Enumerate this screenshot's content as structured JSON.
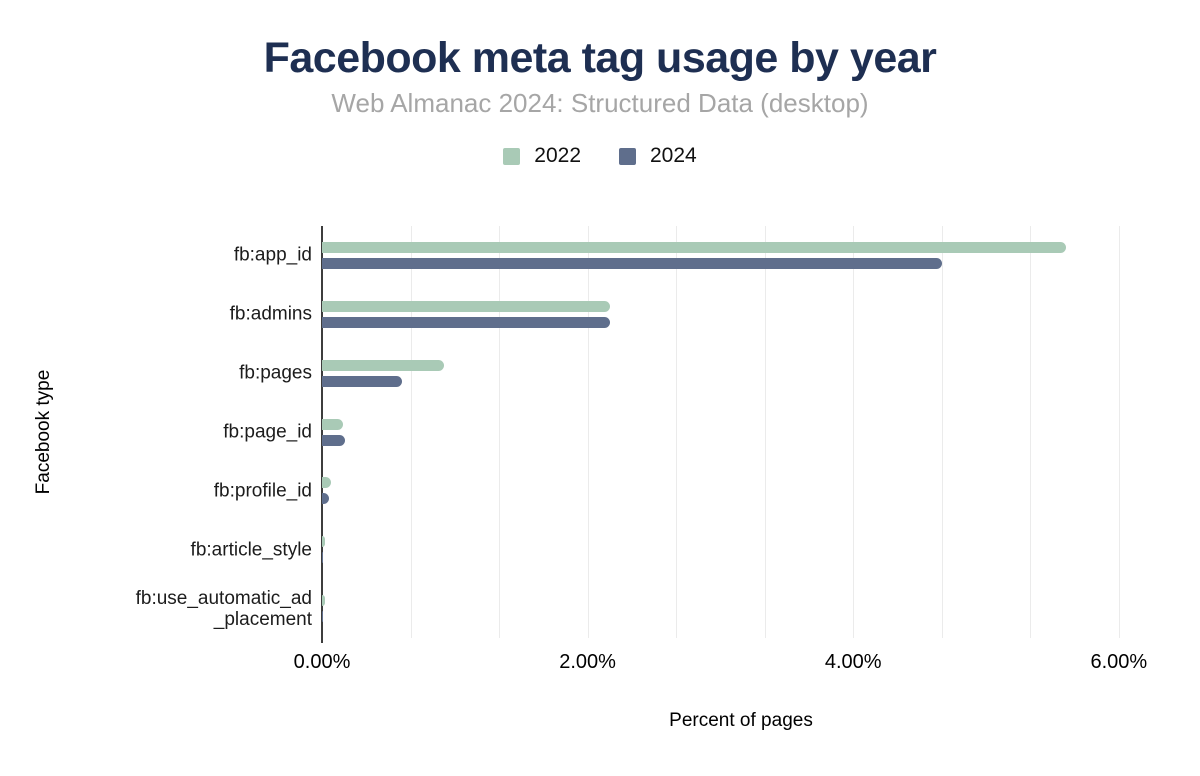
{
  "chart_data": {
    "type": "bar",
    "orientation": "horizontal",
    "title": "Facebook meta tag usage by year",
    "subtitle": "Web Almanac 2024: Structured Data (desktop)",
    "xlabel": "Percent of pages",
    "ylabel": "Facebook type",
    "categories": [
      "fb:app_id",
      "fb:admins",
      "fb:pages",
      "fb:page_id",
      "fb:profile_id",
      "fb:article_style",
      "fb:use_automatic_ad\n_placement"
    ],
    "series": [
      {
        "name": "2022",
        "color": "#a9cab6",
        "values": [
          5.6,
          2.17,
          0.92,
          0.16,
          0.07,
          0.02,
          0.02
        ]
      },
      {
        "name": "2024",
        "color": "#5f6e8c",
        "values": [
          4.67,
          2.17,
          0.6,
          0.17,
          0.05,
          0.01,
          0.01
        ]
      }
    ],
    "x_ticks": [
      {
        "value": 0,
        "label": "0.00%"
      },
      {
        "value": 2,
        "label": "2.00%"
      },
      {
        "value": 4,
        "label": "4.00%"
      },
      {
        "value": 6,
        "label": "6.00%"
      }
    ],
    "xlim": [
      0,
      6.31
    ],
    "minor_grid_step": 0.6667,
    "grid": "vertical-minor-gridlines",
    "legend_position": "top-center",
    "colors": {
      "title": "#1e2f52",
      "subtitle": "#a6a6a6",
      "axis_line": "#3d3d3d",
      "gridline": "#ebebeb",
      "text": "#1c1c1c"
    }
  }
}
